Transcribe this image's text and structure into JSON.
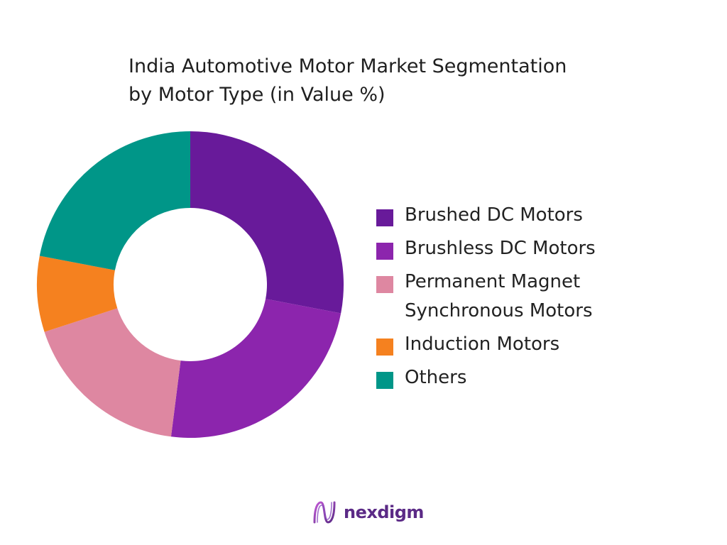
{
  "chart_data": {
    "type": "pie",
    "variant": "donut",
    "title_lines": [
      "India Automotive Motor Market Segmentation",
      "by Motor Type (in Value %)"
    ],
    "categories": [
      "Brushed DC Motors",
      "Brushless DC Motors",
      "Permanent Magnet Synchronous Motors",
      "Induction Motors",
      "Others"
    ],
    "values": [
      28,
      24,
      18,
      8,
      22
    ],
    "unit": "%",
    "colors": [
      "#681a9a",
      "#8c25ad",
      "#de87a1",
      "#f5811f",
      "#009688"
    ],
    "legend_position": "right",
    "legend_labels": [
      "Brushed DC Motors",
      "Brushless DC Motors",
      "Permanent Magnet Synchronous Motors",
      "Induction Motors",
      "Others"
    ]
  },
  "logo": {
    "text": "nexdigm",
    "icon": "nexdigm-wave-logo-icon",
    "color": "#5b2a86"
  }
}
